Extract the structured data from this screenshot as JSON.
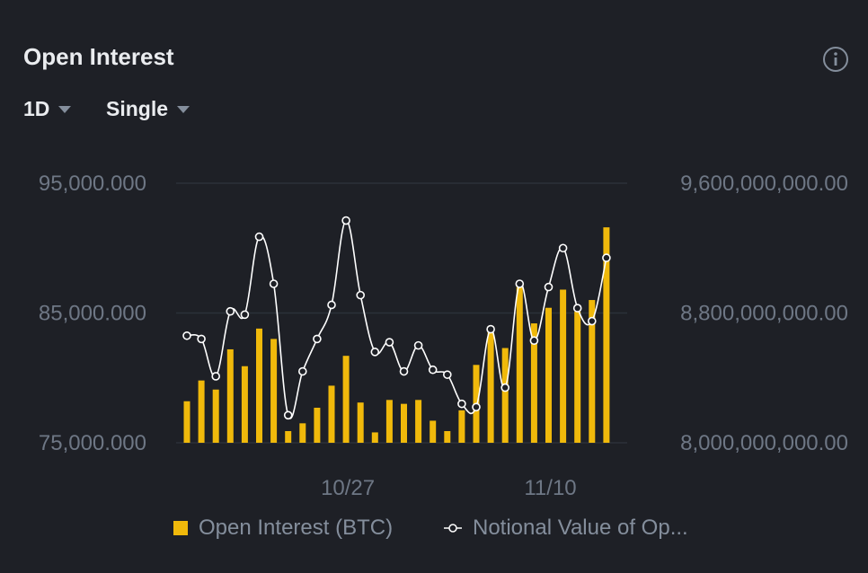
{
  "header": {
    "title": "Open Interest",
    "period": "1D",
    "mode": "Single"
  },
  "colors": {
    "bar": "#f0b90b",
    "line": "#ffffff",
    "grid": "#2b3139",
    "axis_text": "#6e7785",
    "background": "#1e2026"
  },
  "chart_data": {
    "type": "bar+line",
    "title": "Open Interest",
    "left_axis": {
      "ticks": [
        "95,000.000",
        "85,000.000",
        "75,000.000"
      ],
      "ylim": [
        75000,
        95000
      ]
    },
    "right_axis": {
      "ticks": [
        "9,600,000,000.00",
        "8,800,000,000.00",
        "8,000,000,000.00"
      ],
      "ylim": [
        8000000000,
        9600000000
      ]
    },
    "x_ticks": [
      {
        "label": "10/27",
        "index": 11
      },
      {
        "label": "11/10",
        "index": 25
      }
    ],
    "series": [
      {
        "name": "Open Interest (BTC)",
        "type": "bar",
        "axis": "left",
        "values": [
          78200,
          79800,
          79100,
          82200,
          80900,
          83800,
          83000,
          75900,
          76500,
          77700,
          79400,
          81700,
          78100,
          75800,
          78300,
          78000,
          78300,
          76700,
          75900,
          77500,
          81000,
          84000,
          82300,
          87000,
          84200,
          85400,
          86800,
          85100,
          86000,
          91600
        ]
      },
      {
        "name": "Notional Value of Open Interest (USD)",
        "legend_label": "Notional Value of Op...",
        "type": "line",
        "axis": "right",
        "values": [
          8660000000,
          8640000000,
          8410000000,
          8810000000,
          8790000000,
          9270000000,
          8980000000,
          8170000000,
          8440000000,
          8640000000,
          8850000000,
          9370000000,
          8910000000,
          8560000000,
          8620000000,
          8440000000,
          8600000000,
          8450000000,
          8420000000,
          8240000000,
          8220000000,
          8700000000,
          8340000000,
          8980000000,
          8630000000,
          8960000000,
          9200000000,
          8830000000,
          8750000000,
          9140000000
        ]
      }
    ]
  }
}
